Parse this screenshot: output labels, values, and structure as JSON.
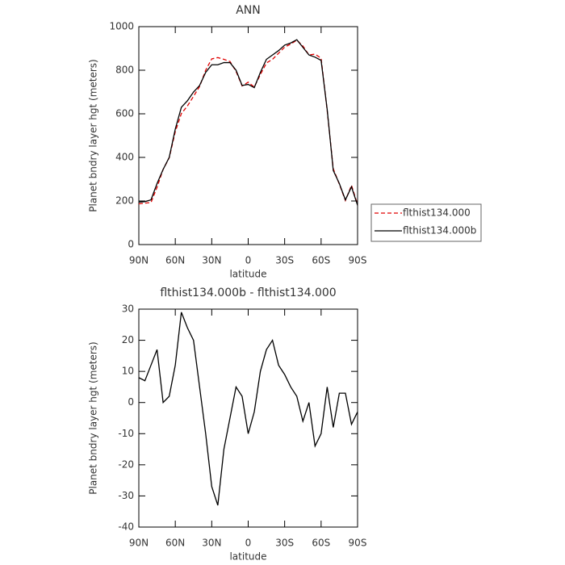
{
  "chart_data": [
    {
      "type": "line",
      "title": "ANN",
      "xlabel": "latitude",
      "ylabel": "Planet bndry layer hgt (meters)",
      "x": [
        90,
        85,
        80,
        75,
        70,
        65,
        60,
        55,
        50,
        45,
        40,
        35,
        30,
        25,
        20,
        15,
        10,
        5,
        0,
        -5,
        -10,
        -15,
        -20,
        -25,
        -30,
        -35,
        -40,
        -45,
        -50,
        -55,
        -60,
        -65,
        -70,
        -75,
        -80,
        -85,
        -90
      ],
      "series": [
        {
          "name": "flthist134.000",
          "color": "#e00000",
          "line_style": "dashed",
          "values": [
            187,
            190,
            193,
            263,
            345,
            398,
            518,
            601,
            636,
            680,
            725,
            800,
            852,
            858,
            850,
            840,
            795,
            728,
            745,
            723,
            780,
            833,
            850,
            878,
            906,
            920,
            938,
            911,
            870,
            874,
            855,
            615,
            348,
            277,
            202,
            272,
            183
          ]
        },
        {
          "name": "flthist134.000b",
          "color": "#000000",
          "line_style": "solid",
          "values": [
            195,
            197,
            205,
            280,
            345,
            400,
            530,
            630,
            660,
            700,
            730,
            790,
            825,
            825,
            835,
            835,
            800,
            730,
            735,
            720,
            790,
            850,
            870,
            890,
            915,
            925,
            940,
            905,
            870,
            860,
            845,
            620,
            340,
            280,
            205,
            265,
            180
          ]
        }
      ],
      "xlim": [
        90,
        -90
      ],
      "xticks": [
        {
          "value": 90,
          "label": "90N"
        },
        {
          "value": 60,
          "label": "60N"
        },
        {
          "value": 30,
          "label": "30N"
        },
        0,
        {
          "value": -30,
          "label": "30S"
        },
        {
          "value": -60,
          "label": "60S"
        },
        {
          "value": -90,
          "label": "90S"
        }
      ],
      "ylim": [
        0,
        1000
      ],
      "yticks": [
        0,
        200,
        400,
        600,
        800,
        1000
      ],
      "legend": "right"
    },
    {
      "type": "line",
      "title": "flthist134.000b - flthist134.000",
      "xlabel": "latitude",
      "ylabel": "Planet bndry layer hgt (meters)",
      "x": [
        90,
        85,
        80,
        75,
        70,
        65,
        60,
        55,
        50,
        45,
        40,
        35,
        30,
        25,
        20,
        15,
        10,
        5,
        0,
        -5,
        -10,
        -15,
        -20,
        -25,
        -30,
        -35,
        -40,
        -45,
        -50,
        -55,
        -60,
        -65,
        -70,
        -75,
        -80,
        -85,
        -90
      ],
      "series": [
        {
          "color": "#000000",
          "line_style": "solid",
          "values": [
            8,
            7,
            12,
            17,
            0,
            2,
            12,
            29,
            24,
            20,
            5,
            -10,
            -27,
            -33,
            -15,
            -5,
            5,
            2,
            -10,
            -3,
            10,
            17,
            20,
            12,
            9,
            5,
            2,
            -6,
            0,
            -14,
            -10,
            5,
            -8,
            3,
            3,
            -7,
            -3
          ]
        }
      ],
      "xlim": [
        90,
        -90
      ],
      "xticks": [
        {
          "value": 90,
          "label": "90N"
        },
        {
          "value": 60,
          "label": "60N"
        },
        {
          "value": 30,
          "label": "30N"
        },
        0,
        {
          "value": -30,
          "label": "30S"
        },
        {
          "value": -60,
          "label": "60S"
        },
        {
          "value": -90,
          "label": "90S"
        }
      ],
      "ylim": [
        -40,
        30
      ],
      "yticks": [
        -40,
        -30,
        -20,
        -10,
        0,
        10,
        20,
        30
      ]
    }
  ]
}
